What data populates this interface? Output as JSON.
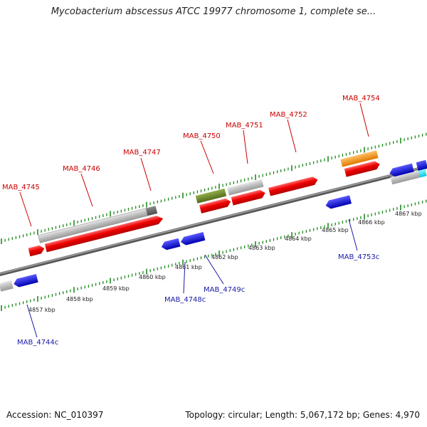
{
  "title": "Mycobacterium abscessus ATCC 19977 chromosome 1, complete se...",
  "footer": {
    "accession": "Accession: NC_010397",
    "summary": "Topology: circular; Length: 5,067,172 bp; Genes: 4,970"
  },
  "colors": {
    "cds_red": "#ee0000",
    "gene_gray": "#bdbdbd",
    "rna_green": "#6b8e23",
    "orange": "#ff9900",
    "minus_blue": "#1010dd",
    "tick_green": "#1f8a1f"
  },
  "scale_labels": [
    "4857 kbp",
    "4858 kbp",
    "4859 kbp",
    "4860 kbp",
    "4861 kbp",
    "4862 kbp",
    "4863 kbp",
    "4864 kbp",
    "4865 kbp",
    "4866 kbp",
    "4867 kbp"
  ],
  "plus_gene_labels": [
    "MAB_4745",
    "MAB_4746",
    "MAB_4747",
    "MAB_4750",
    "MAB_4751",
    "MAB_4752",
    "MAB_4754"
  ],
  "minus_gene_labels": [
    "MAB_4744c",
    "MAB_4748c",
    "MAB_4749c",
    "MAB_4753c"
  ]
}
